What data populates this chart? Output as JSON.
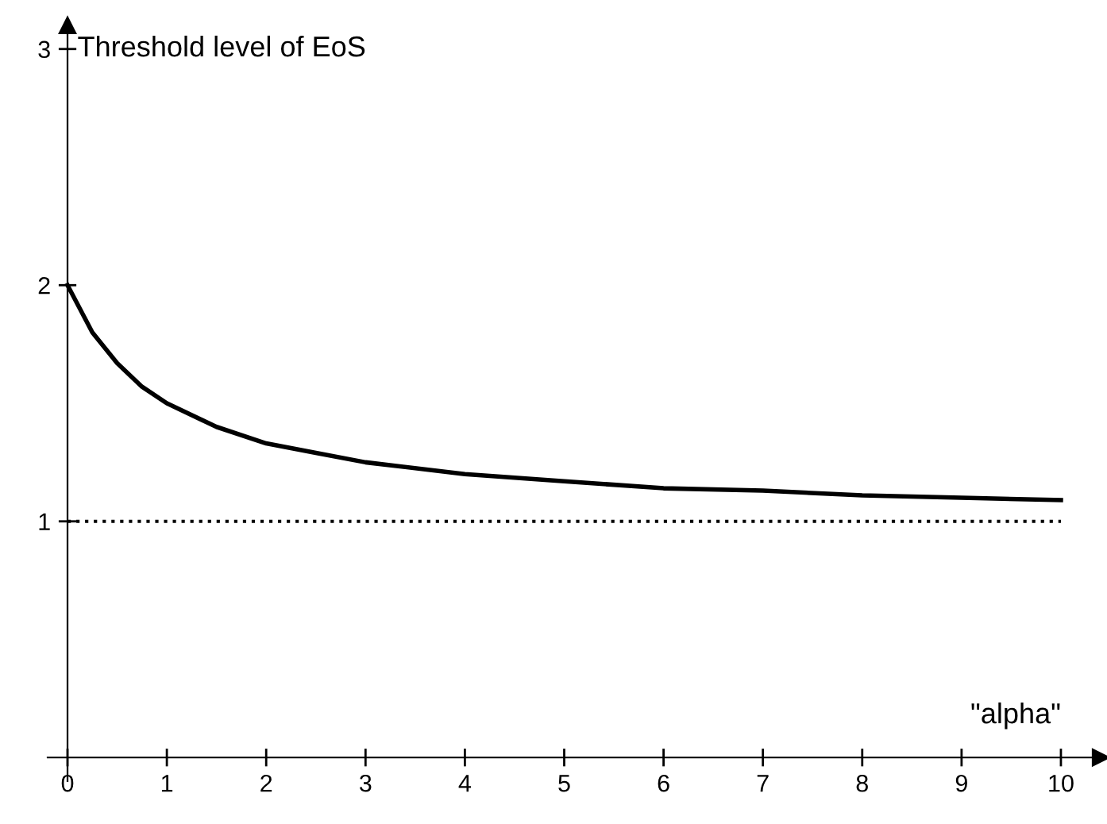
{
  "chart_data": {
    "type": "line",
    "ylabel": "Threshold level of EoS",
    "xlabel": "\"alpha\"",
    "series": [
      {
        "color": "#000000",
        "x": [
          0,
          0.25,
          0.5,
          0.75,
          1,
          1.5,
          2,
          2.5,
          3,
          4,
          5,
          6,
          7,
          8,
          9,
          10
        ],
        "values": [
          2,
          1.8,
          1.67,
          1.57,
          1.5,
          1.4,
          1.33,
          1.29,
          1.25,
          1.2,
          1.17,
          1.14,
          1.13,
          1.11,
          1.1,
          1.09
        ]
      }
    ],
    "ref_lines": [
      {
        "axis": "y",
        "value": 1,
        "label": null,
        "color": "#000000",
        "line_style": "dotted"
      }
    ],
    "xlim": [
      -0.2,
      10.4
    ],
    "ylim": [
      -0.1,
      3.1
    ],
    "xticks": [
      0,
      1,
      2,
      3,
      4,
      5,
      6,
      7,
      8,
      9,
      10
    ],
    "yticks": [
      1,
      2,
      3
    ],
    "grid": false,
    "legend": false,
    "marker": "none",
    "line_style": "solid"
  }
}
